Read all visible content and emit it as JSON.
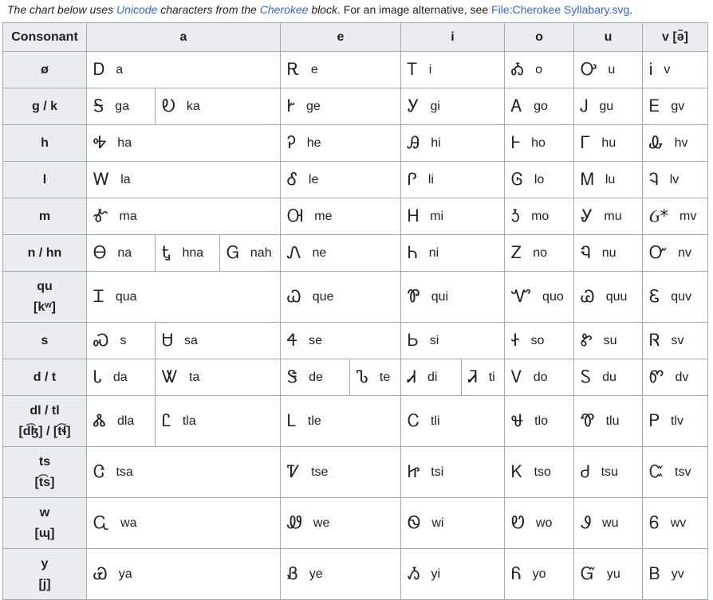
{
  "note": {
    "parts": [
      {
        "text": "The chart below uses ",
        "style": "italic"
      },
      {
        "text": "Unicode",
        "style": "italic-link"
      },
      {
        "text": " characters from the ",
        "style": "italic"
      },
      {
        "text": "Cherokee",
        "style": "italic-link"
      },
      {
        "text": " block",
        "style": "italic"
      },
      {
        "text": ". For an image alternative, see ",
        "style": "plain"
      },
      {
        "text": "File:Cherokee Syllabary.svg",
        "style": "link"
      },
      {
        "text": ".",
        "style": "plain"
      }
    ]
  },
  "table": {
    "header": [
      "Consonant",
      "a",
      "e",
      "i",
      "o",
      "u",
      "v [ə̃]"
    ],
    "rows": [
      {
        "consonant": "ø",
        "cells": [
          [
            {
              "glyph": "Ꭰ",
              "latin": "a"
            }
          ],
          [
            {
              "glyph": "Ꭱ",
              "latin": "e"
            }
          ],
          [
            {
              "glyph": "Ꭲ",
              "latin": "i"
            }
          ],
          [
            {
              "glyph": "Ꭳ",
              "latin": "o"
            }
          ],
          [
            {
              "glyph": "Ꭴ",
              "latin": "u"
            }
          ],
          [
            {
              "glyph": "Ꭵ",
              "latin": "v"
            }
          ]
        ]
      },
      {
        "consonant": "g / k",
        "cells": [
          [
            {
              "glyph": "Ꭶ",
              "latin": "ga"
            },
            {
              "glyph": "Ꭷ",
              "latin": "ka"
            }
          ],
          [
            {
              "glyph": "Ꭸ",
              "latin": "ge"
            }
          ],
          [
            {
              "glyph": "Ꭹ",
              "latin": "gi"
            }
          ],
          [
            {
              "glyph": "Ꭺ",
              "latin": "go"
            }
          ],
          [
            {
              "glyph": "Ꭻ",
              "latin": "gu"
            }
          ],
          [
            {
              "glyph": "Ꭼ",
              "latin": "gv"
            }
          ]
        ]
      },
      {
        "consonant": "h",
        "cells": [
          [
            {
              "glyph": "Ꭽ",
              "latin": "ha"
            }
          ],
          [
            {
              "glyph": "Ꭾ",
              "latin": "he"
            }
          ],
          [
            {
              "glyph": "Ꭿ",
              "latin": "hi"
            }
          ],
          [
            {
              "glyph": "Ꮀ",
              "latin": "ho"
            }
          ],
          [
            {
              "glyph": "Ꮁ",
              "latin": "hu"
            }
          ],
          [
            {
              "glyph": "Ꮂ",
              "latin": "hv"
            }
          ]
        ]
      },
      {
        "consonant": "l",
        "cells": [
          [
            {
              "glyph": "Ꮃ",
              "latin": "la"
            }
          ],
          [
            {
              "glyph": "Ꮄ",
              "latin": "le"
            }
          ],
          [
            {
              "glyph": "Ꮅ",
              "latin": "li"
            }
          ],
          [
            {
              "glyph": "Ꮆ",
              "latin": "lo"
            }
          ],
          [
            {
              "glyph": "Ꮇ",
              "latin": "lu"
            }
          ],
          [
            {
              "glyph": "Ꮈ",
              "latin": "lv"
            }
          ]
        ]
      },
      {
        "consonant": "m",
        "cells": [
          [
            {
              "glyph": "Ꮉ",
              "latin": "ma"
            }
          ],
          [
            {
              "glyph": "Ꮊ",
              "latin": "me"
            }
          ],
          [
            {
              "glyph": "Ꮋ",
              "latin": "mi"
            }
          ],
          [
            {
              "glyph": "Ꮌ",
              "latin": "mo"
            }
          ],
          [
            {
              "glyph": "Ꮍ",
              "latin": "mu"
            }
          ],
          [
            {
              "glyph": "Ᏽ*",
              "latin": "mv"
            }
          ]
        ]
      },
      {
        "consonant": "n / hn",
        "cells": [
          [
            {
              "glyph": "Ꮎ",
              "latin": "na"
            },
            {
              "glyph": "Ꮏ",
              "latin": "hna"
            },
            {
              "glyph": "Ꮐ",
              "latin": "nah"
            }
          ],
          [
            {
              "glyph": "Ꮑ",
              "latin": "ne"
            }
          ],
          [
            {
              "glyph": "Ꮒ",
              "latin": "ni"
            }
          ],
          [
            {
              "glyph": "Ꮓ",
              "latin": "no"
            }
          ],
          [
            {
              "glyph": "Ꮔ",
              "latin": "nu"
            }
          ],
          [
            {
              "glyph": "Ꮕ",
              "latin": "nv"
            }
          ]
        ]
      },
      {
        "consonant": "qu",
        "ipa": "[kʷ]",
        "cells": [
          [
            {
              "glyph": "Ꮖ",
              "latin": "qua"
            }
          ],
          [
            {
              "glyph": "Ꮗ",
              "latin": "que"
            }
          ],
          [
            {
              "glyph": "Ꮘ",
              "latin": "qui"
            }
          ],
          [
            {
              "glyph": "Ꮙ",
              "latin": "quo"
            }
          ],
          [
            {
              "glyph": "Ꮚ",
              "latin": "quu"
            }
          ],
          [
            {
              "glyph": "Ꮛ",
              "latin": "quv"
            }
          ]
        ]
      },
      {
        "consonant": "s",
        "cells": [
          [
            {
              "glyph": "Ꮝ",
              "latin": "s"
            },
            {
              "glyph": "Ꮜ",
              "latin": "sa"
            }
          ],
          [
            {
              "glyph": "Ꮞ",
              "latin": "se"
            }
          ],
          [
            {
              "glyph": "Ꮟ",
              "latin": "si"
            }
          ],
          [
            {
              "glyph": "Ꮠ",
              "latin": "so"
            }
          ],
          [
            {
              "glyph": "Ꮡ",
              "latin": "su"
            }
          ],
          [
            {
              "glyph": "Ꮢ",
              "latin": "sv"
            }
          ]
        ]
      },
      {
        "consonant": "d / t",
        "cells": [
          [
            {
              "glyph": "Ꮣ",
              "latin": "da"
            },
            {
              "glyph": "Ꮤ",
              "latin": "ta"
            }
          ],
          [
            {
              "glyph": "Ꮥ",
              "latin": "de"
            },
            {
              "glyph": "Ꮦ",
              "latin": "te"
            }
          ],
          [
            {
              "glyph": "Ꮧ",
              "latin": "di"
            },
            {
              "glyph": "Ꮨ",
              "latin": "ti"
            }
          ],
          [
            {
              "glyph": "Ꮩ",
              "latin": "do"
            }
          ],
          [
            {
              "glyph": "Ꮪ",
              "latin": "du"
            }
          ],
          [
            {
              "glyph": "Ꮫ",
              "latin": "dv"
            }
          ]
        ]
      },
      {
        "consonant": "dl / tl",
        "ipa": "[d͡ɮ] / [t͡ɬ]",
        "cells": [
          [
            {
              "glyph": "Ꮬ",
              "latin": "dla"
            },
            {
              "glyph": "Ꮭ",
              "latin": "tla"
            }
          ],
          [
            {
              "glyph": "Ꮮ",
              "latin": "tle"
            }
          ],
          [
            {
              "glyph": "Ꮯ",
              "latin": "tli"
            }
          ],
          [
            {
              "glyph": "Ꮰ",
              "latin": "tlo"
            }
          ],
          [
            {
              "glyph": "Ꮱ",
              "latin": "tlu"
            }
          ],
          [
            {
              "glyph": "Ꮲ",
              "latin": "tlv"
            }
          ]
        ]
      },
      {
        "consonant": "ts",
        "ipa": "[t͡s]",
        "cells": [
          [
            {
              "glyph": "Ꮳ",
              "latin": "tsa"
            }
          ],
          [
            {
              "glyph": "Ꮴ",
              "latin": "tse"
            }
          ],
          [
            {
              "glyph": "Ꮵ",
              "latin": "tsi"
            }
          ],
          [
            {
              "glyph": "Ꮶ",
              "latin": "tso"
            }
          ],
          [
            {
              "glyph": "Ꮷ",
              "latin": "tsu"
            }
          ],
          [
            {
              "glyph": "Ꮸ",
              "latin": "tsv"
            }
          ]
        ]
      },
      {
        "consonant": "w",
        "ipa": "[ɰ]",
        "cells": [
          [
            {
              "glyph": "Ꮹ",
              "latin": "wa"
            }
          ],
          [
            {
              "glyph": "Ꮺ",
              "latin": "we"
            }
          ],
          [
            {
              "glyph": "Ꮻ",
              "latin": "wi"
            }
          ],
          [
            {
              "glyph": "Ꮼ",
              "latin": "wo"
            }
          ],
          [
            {
              "glyph": "Ꮽ",
              "latin": "wu"
            }
          ],
          [
            {
              "glyph": "Ꮾ",
              "latin": "wv"
            }
          ]
        ]
      },
      {
        "consonant": "y",
        "ipa": "[j]",
        "cells": [
          [
            {
              "glyph": "Ꮿ",
              "latin": "ya"
            }
          ],
          [
            {
              "glyph": "Ᏸ",
              "latin": "ye"
            }
          ],
          [
            {
              "glyph": "Ᏹ",
              "latin": "yi"
            }
          ],
          [
            {
              "glyph": "Ᏺ",
              "latin": "yo"
            }
          ],
          [
            {
              "glyph": "Ᏻ",
              "latin": "yu"
            }
          ],
          [
            {
              "glyph": "Ᏼ",
              "latin": "yv"
            }
          ]
        ]
      }
    ]
  }
}
